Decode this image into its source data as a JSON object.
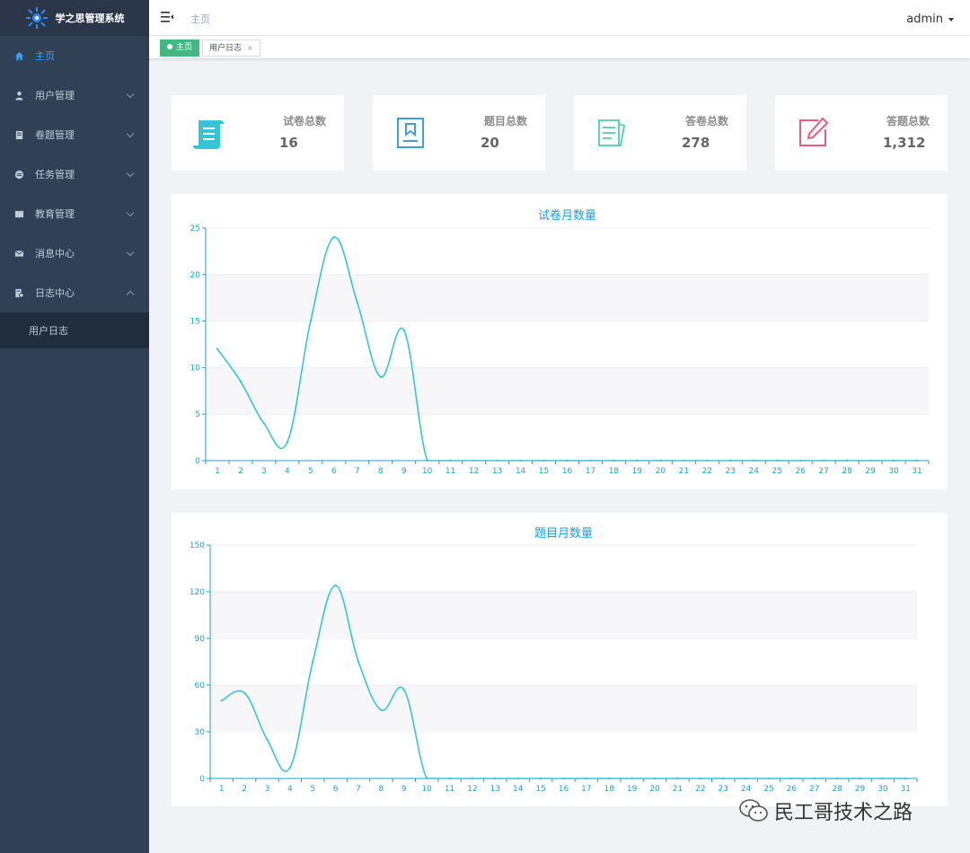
{
  "app": {
    "title": "学之思管理系统"
  },
  "sidebar": {
    "items": [
      {
        "label": "主页",
        "icon": "home-icon",
        "active": true
      },
      {
        "label": "用户管理",
        "icon": "user-icon",
        "expandable": true
      },
      {
        "label": "卷题管理",
        "icon": "paper-icon",
        "expandable": true
      },
      {
        "label": "任务管理",
        "icon": "task-icon",
        "expandable": true
      },
      {
        "label": "教育管理",
        "icon": "book-icon",
        "expandable": true
      },
      {
        "label": "消息中心",
        "icon": "mail-icon",
        "expandable": true
      },
      {
        "label": "日志中心",
        "icon": "log-icon",
        "expandable": true,
        "expanded": true
      }
    ],
    "submenu": [
      {
        "label": "用户日志"
      }
    ]
  },
  "header": {
    "breadcrumb": "主页",
    "user": "admin"
  },
  "tags": [
    {
      "label": "主页",
      "active": true
    },
    {
      "label": "用户日志",
      "closable": true
    }
  ],
  "cards": [
    {
      "label": "试卷总数",
      "value": "16",
      "icon": "scroll-icon",
      "color": "#36c6d3"
    },
    {
      "label": "题目总数",
      "value": "20",
      "icon": "bookmark-icon",
      "color": "#3ba1d7"
    },
    {
      "label": "答卷总数",
      "value": "278",
      "icon": "documents-icon",
      "color": "#5fd3b6"
    },
    {
      "label": "答题总数",
      "value": "1,312",
      "icon": "edit-icon",
      "color": "#e95c7b"
    }
  ],
  "chart_data": [
    {
      "type": "line",
      "title": "试卷月数量",
      "x": [
        "1",
        "2",
        "3",
        "4",
        "5",
        "6",
        "7",
        "8",
        "9",
        "10",
        "11",
        "12",
        "13",
        "14",
        "15",
        "16",
        "17",
        "18",
        "19",
        "20",
        "21",
        "22",
        "23",
        "24",
        "25",
        "26",
        "27",
        "28",
        "29",
        "30",
        "31"
      ],
      "values": [
        12,
        8.5,
        4,
        2,
        15,
        24,
        17,
        9,
        14,
        0,
        0,
        0,
        0,
        0,
        0,
        0,
        0,
        0,
        0,
        0,
        0,
        0,
        0,
        0,
        0,
        0,
        0,
        0,
        0,
        0,
        0
      ],
      "ylim": [
        0,
        25
      ],
      "yticks": [
        "0",
        "5",
        "10",
        "15",
        "20",
        "25"
      ],
      "color": "#36c6d3",
      "grid": true
    },
    {
      "type": "line",
      "title": "题目月数量",
      "x": [
        "1",
        "2",
        "3",
        "4",
        "5",
        "6",
        "7",
        "8",
        "9",
        "10",
        "11",
        "12",
        "13",
        "14",
        "15",
        "16",
        "17",
        "18",
        "19",
        "20",
        "21",
        "22",
        "23",
        "24",
        "25",
        "26",
        "27",
        "28",
        "29",
        "30",
        "31"
      ],
      "values": [
        50,
        55,
        25,
        7,
        75,
        124,
        75,
        44,
        57,
        0,
        0,
        0,
        0,
        0,
        0,
        0,
        0,
        0,
        0,
        0,
        0,
        0,
        0,
        0,
        0,
        0,
        0,
        0,
        0,
        0,
        0
      ],
      "ylim": [
        0,
        150
      ],
      "yticks": [
        "0",
        "30",
        "60",
        "90",
        "120",
        "150"
      ],
      "color": "#36c6d3",
      "grid": true
    }
  ],
  "watermark": {
    "text": "民工哥技术之路",
    "icon": "wechat-icon"
  }
}
